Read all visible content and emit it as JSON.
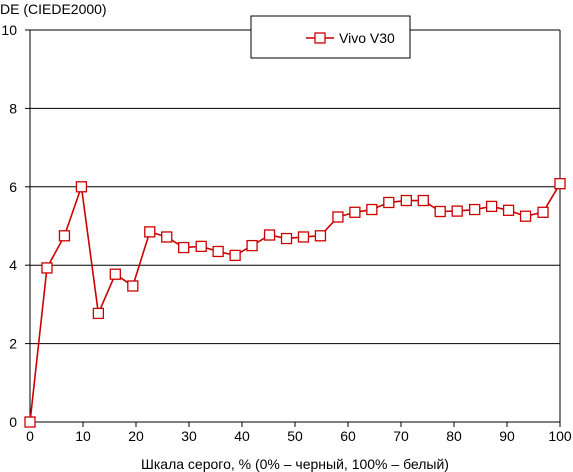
{
  "chart_data": {
    "type": "line",
    "title": "",
    "ylabel": "DE (CIEDE2000)",
    "xlabel": "Шкала серого, % (0% – черный, 100% – белый)",
    "xlim": [
      0,
      100
    ],
    "ylim": [
      0,
      10
    ],
    "x_ticks": [
      "0",
      "10",
      "20",
      "30",
      "40",
      "50",
      "60",
      "70",
      "80",
      "90",
      "100"
    ],
    "y_ticks": [
      "0",
      "2",
      "4",
      "6",
      "8",
      "10"
    ],
    "grid": "horizontal",
    "legend_position": "top-center",
    "series": [
      {
        "name": "Vivo V30",
        "color": "#cc0000",
        "marker": "square-open",
        "x": [
          0,
          3.2,
          6.5,
          9.7,
          12.9,
          16.1,
          19.4,
          22.6,
          25.8,
          29.0,
          32.3,
          35.5,
          38.7,
          41.9,
          45.2,
          48.4,
          51.6,
          54.8,
          58.1,
          61.3,
          64.5,
          67.7,
          71.0,
          74.2,
          77.4,
          80.6,
          83.9,
          87.1,
          90.3,
          93.5,
          96.8,
          100
        ],
        "y": [
          0,
          3.93,
          4.75,
          6.0,
          2.77,
          3.77,
          3.47,
          4.85,
          4.72,
          4.45,
          4.48,
          4.35,
          4.25,
          4.5,
          4.77,
          4.68,
          4.72,
          4.75,
          5.23,
          5.35,
          5.42,
          5.6,
          5.65,
          5.65,
          5.37,
          5.38,
          5.42,
          5.5,
          5.4,
          5.25,
          5.35,
          6.08
        ]
      }
    ]
  }
}
